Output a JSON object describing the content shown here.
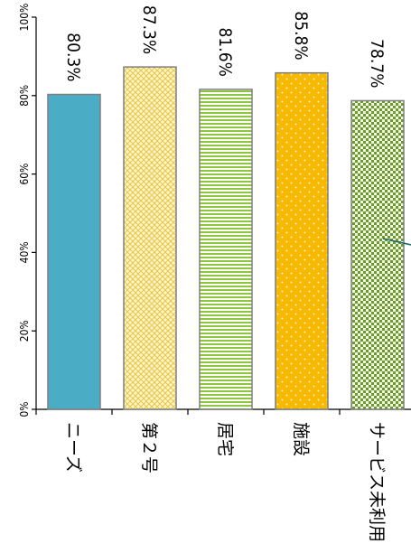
{
  "chart_data": {
    "type": "bar",
    "orientation": "vertical",
    "categories": [
      "ニーズ",
      "第２号",
      "居宅",
      "施設",
      "サービス未利用"
    ],
    "values": [
      80.3,
      87.3,
      81.6,
      85.8,
      78.7
    ],
    "value_labels": [
      "80.3%",
      "87.3%",
      "81.6%",
      "85.8%",
      "78.7%"
    ],
    "ylim": [
      0,
      100
    ],
    "yticks": [
      0,
      20,
      40,
      60,
      80,
      100
    ],
    "ytick_labels": [
      "0%",
      "20%",
      "40%",
      "60%",
      "80%",
      "100%"
    ],
    "title": "",
    "xlabel": "",
    "ylabel": "",
    "grid": false,
    "legend": "none",
    "bar_styles": [
      {
        "fill": "#4BACC6",
        "pattern": "solid"
      },
      {
        "fill": "#F9E27A",
        "pattern": "crosshatch"
      },
      {
        "fill": "#8DC63F",
        "pattern": "horizontal-stripes"
      },
      {
        "fill": "#F7B800",
        "pattern": "dots"
      },
      {
        "fill": "#6C9A2C",
        "pattern": "checker"
      }
    ],
    "bar_outline": "#7F7F7F"
  }
}
